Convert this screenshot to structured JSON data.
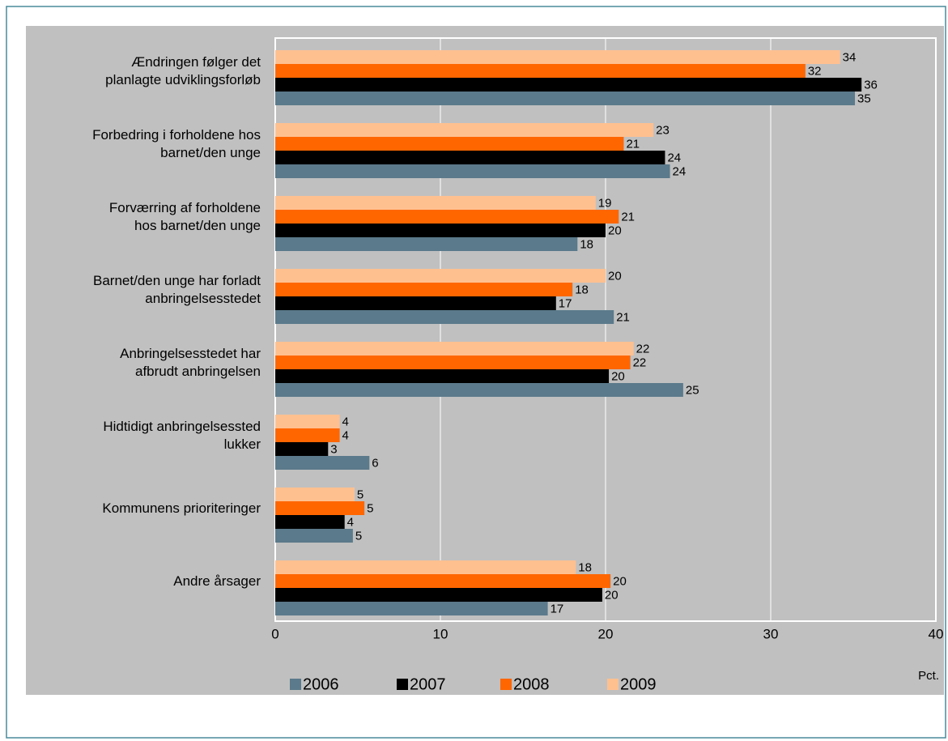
{
  "chart_data": {
    "type": "hbar",
    "categories": [
      "Ændringen følger det\nplanlagte udviklingsforløb",
      "Forbedring i forholdene hos\nbarnet/den unge",
      "Forværring af forholdene\nhos barnet/den unge",
      "Barnet/den unge har forladt\nanbringelsesstedet",
      "Anbringelsesstedet har\nafbrudt anbringelsen",
      "Hidtidigt anbringelsessted\nlukker",
      "Kommunens prioriteringer",
      "Andre årsager"
    ],
    "series": [
      {
        "name": "2006",
        "color": "#5b7a8b",
        "values": [
          35.1,
          23.9,
          18.3,
          20.5,
          24.7,
          5.7,
          4.7,
          16.5
        ],
        "value_labels": [
          "35",
          "24",
          "18",
          "21",
          "25",
          "6",
          "5",
          "17"
        ]
      },
      {
        "name": "2007",
        "color": "#000000",
        "values": [
          35.5,
          23.6,
          20.0,
          17.0,
          20.2,
          3.2,
          4.2,
          19.8
        ],
        "value_labels": [
          "36",
          "24",
          "20",
          "17",
          "20",
          "3",
          "4",
          "20"
        ]
      },
      {
        "name": "2008",
        "color": "#ff6600",
        "values": [
          32.1,
          21.1,
          20.8,
          18.0,
          21.5,
          3.9,
          5.4,
          20.3
        ],
        "value_labels": [
          "32",
          "21",
          "21",
          "18",
          "22",
          "4",
          "5",
          "20"
        ]
      },
      {
        "name": "2009",
        "color": "#ffc090",
        "values": [
          34.2,
          22.9,
          19.4,
          20.0,
          21.7,
          3.9,
          4.8,
          18.2
        ],
        "value_labels": [
          "34",
          "23",
          "19",
          "20",
          "22",
          "4",
          "5",
          "18"
        ]
      }
    ],
    "x_label": "Pct.",
    "xlim": [
      0,
      40
    ],
    "xticks": [
      0,
      10,
      20,
      30,
      40
    ],
    "grid": true,
    "legend": "bottom"
  }
}
